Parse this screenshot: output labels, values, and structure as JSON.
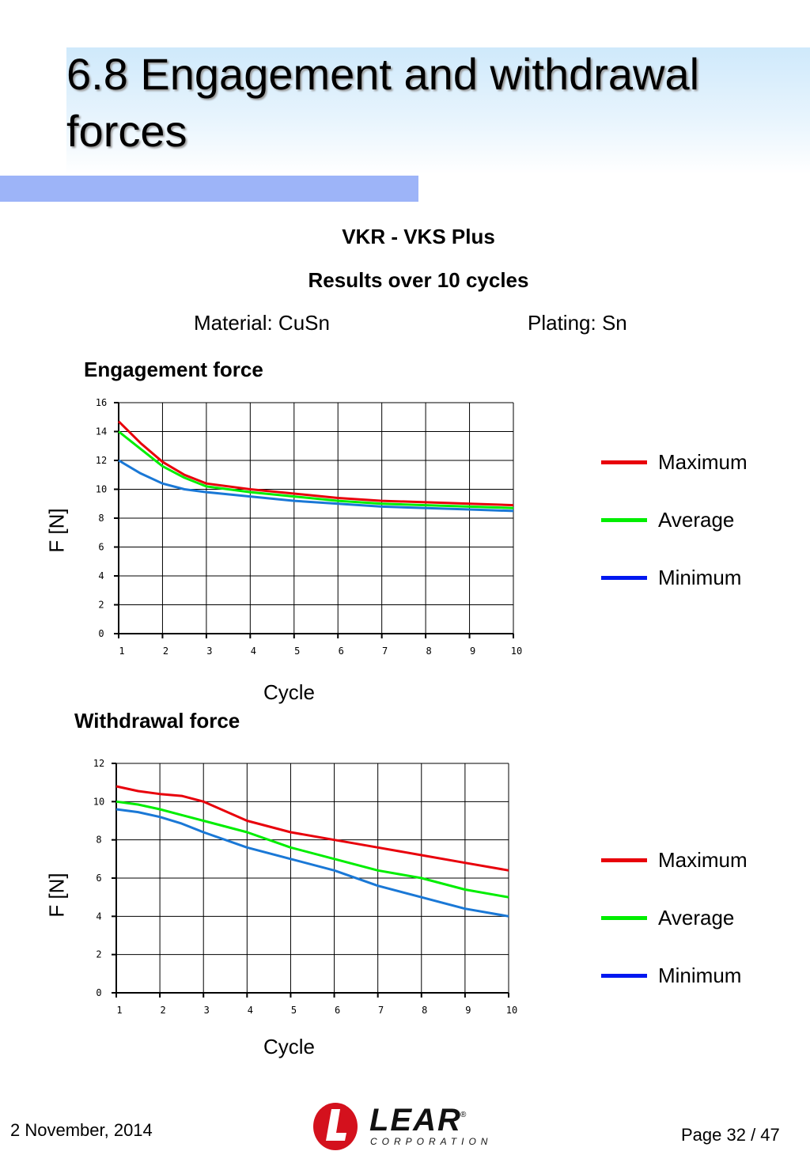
{
  "header": {
    "title": "6.8 Engagement and withdrawal forces",
    "subtitle_line1": "VKR - VKS  Plus",
    "subtitle_line2": "Results over 10 cycles",
    "material": "Material: CuSn",
    "plating": "Plating: Sn"
  },
  "colors": {
    "maximum": "#e8000b",
    "average": "#00ee00",
    "minimum": "#1a78d6",
    "legend_minimum": "#0018f0",
    "title_band": "#cfe9fb",
    "title_bar": "#9db4f8"
  },
  "chart_data": [
    {
      "type": "line",
      "title": "Engagement force",
      "xlabel": "Cycle",
      "ylabel": "F [N]",
      "x": [
        1,
        1.5,
        2,
        2.5,
        3,
        4,
        5,
        6,
        7,
        8,
        9,
        10
      ],
      "xlim": [
        1,
        10
      ],
      "ylim": [
        0,
        16
      ],
      "xticks": [
        1,
        2,
        3,
        4,
        5,
        6,
        7,
        8,
        9,
        10
      ],
      "yticks": [
        0,
        2,
        4,
        6,
        8,
        10,
        12,
        14,
        16
      ],
      "grid": true,
      "legend": "right",
      "series": [
        {
          "name": "Maximum",
          "color": "#e8000b",
          "values": [
            14.7,
            13.2,
            11.9,
            11.0,
            10.4,
            10.0,
            9.7,
            9.4,
            9.2,
            9.1,
            9.0,
            8.9
          ]
        },
        {
          "name": "Average",
          "color": "#00ee00",
          "values": [
            14.0,
            12.8,
            11.6,
            10.8,
            10.2,
            9.8,
            9.5,
            9.2,
            9.0,
            8.9,
            8.8,
            8.7
          ]
        },
        {
          "name": "Minimum",
          "color": "#1a78d6",
          "values": [
            12.0,
            11.1,
            10.4,
            10.0,
            9.8,
            9.5,
            9.2,
            9.0,
            8.8,
            8.7,
            8.6,
            8.5
          ]
        }
      ]
    },
    {
      "type": "line",
      "title": "Withdrawal force",
      "xlabel": "Cycle",
      "ylabel": "F [N]",
      "x": [
        1,
        1.5,
        2,
        2.5,
        3,
        4,
        5,
        6,
        7,
        8,
        9,
        10
      ],
      "xlim": [
        1,
        10
      ],
      "ylim": [
        0,
        12
      ],
      "xticks": [
        1,
        2,
        3,
        4,
        5,
        6,
        7,
        8,
        9,
        10
      ],
      "yticks": [
        0,
        2,
        4,
        6,
        8,
        10,
        12
      ],
      "grid": true,
      "legend": "right",
      "series": [
        {
          "name": "Maximum",
          "color": "#e8000b",
          "values": [
            10.8,
            10.55,
            10.4,
            10.3,
            10.0,
            9.0,
            8.4,
            8.0,
            7.6,
            7.2,
            6.8,
            6.4
          ]
        },
        {
          "name": "Average",
          "color": "#00ee00",
          "values": [
            10.0,
            9.85,
            9.6,
            9.3,
            9.0,
            8.4,
            7.6,
            7.0,
            6.4,
            6.0,
            5.4,
            5.0
          ]
        },
        {
          "name": "Minimum",
          "color": "#1a78d6",
          "values": [
            9.6,
            9.45,
            9.2,
            8.85,
            8.4,
            7.6,
            7.0,
            6.4,
            5.6,
            5.0,
            4.4,
            4.0
          ]
        }
      ]
    }
  ],
  "legend_labels": [
    "Maximum",
    "Average",
    "Minimum"
  ],
  "footer": {
    "date": "2 November, 2014",
    "page": "Page 32 / 47",
    "logo_word": "LEAR",
    "logo_reg": "®",
    "logo_corp": "CORPORATION"
  }
}
